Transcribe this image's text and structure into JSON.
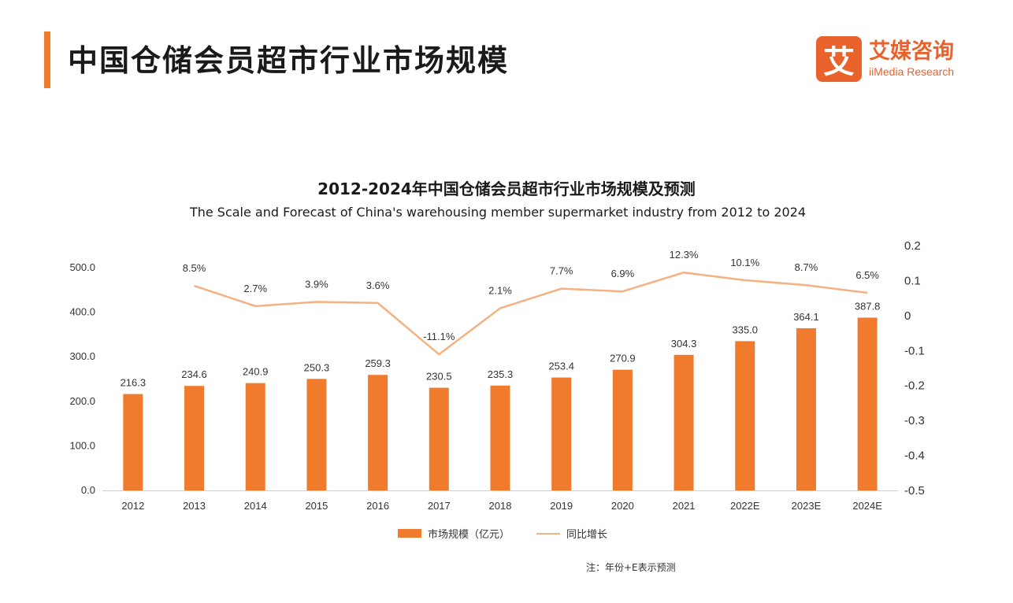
{
  "header": {
    "title": "中国仓储会员超市行业市场规模",
    "logo_mark": "艾",
    "logo_cn": "艾媒咨询",
    "logo_en": "iiMedia Research"
  },
  "colors": {
    "accent": "#f07b2c",
    "bar": "#f07b2c",
    "line": "#f4b283",
    "logo": "#e9612b"
  },
  "legend": {
    "bar_label": "市场规模（亿元）",
    "line_label": "同比增长"
  },
  "note": "注：年份+E表示预测",
  "chart_data": {
    "type": "bar",
    "title": "2012-2024年中国仓储会员超市行业市场规模及预测",
    "subtitle": "The Scale and Forecast of China's warehousing member supermarket industry from 2012 to 2024",
    "categories": [
      "2012",
      "2013",
      "2014",
      "2015",
      "2016",
      "2017",
      "2018",
      "2019",
      "2020",
      "2021",
      "2022E",
      "2023E",
      "2024E"
    ],
    "series": [
      {
        "name": "市场规模（亿元）",
        "type": "bar",
        "axis": "left",
        "values": [
          216.3,
          234.6,
          240.9,
          250.3,
          259.3,
          230.5,
          235.3,
          253.4,
          270.9,
          304.3,
          335.0,
          364.1,
          387.8
        ],
        "labels": [
          "216.3",
          "234.6",
          "240.9",
          "250.3",
          "259.3",
          "230.5",
          "235.3",
          "253.4",
          "270.9",
          "304.3",
          "335.0",
          "364.1",
          "387.8"
        ]
      },
      {
        "name": "同比增长",
        "type": "line",
        "axis": "right",
        "values": [
          null,
          0.085,
          0.027,
          0.039,
          0.036,
          -0.111,
          0.021,
          0.077,
          0.069,
          0.123,
          0.101,
          0.087,
          0.065
        ],
        "labels": [
          "",
          "8.5%",
          "2.7%",
          "3.9%",
          "3.6%",
          "-11.1%",
          "2.1%",
          "7.7%",
          "6.9%",
          "12.3%",
          "10.1%",
          "8.7%",
          "6.5%"
        ]
      }
    ],
    "y_left": {
      "lim": [
        0,
        500
      ],
      "ticks": [
        "0.0",
        "100.0",
        "200.0",
        "300.0",
        "400.0",
        "500.0"
      ]
    },
    "y_right": {
      "lim": [
        -0.5,
        0.2
      ],
      "ticks": [
        "-0.5",
        "-0.4",
        "-0.3",
        "-0.2",
        "-0.1",
        "0",
        "0.1",
        "0.2"
      ]
    },
    "grid": false,
    "legend_position": "bottom"
  }
}
